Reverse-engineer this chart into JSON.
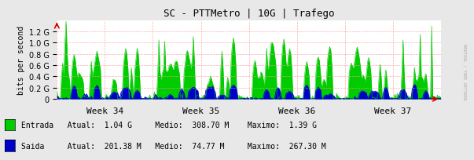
{
  "title": "SC - PTTMetro | 10G | Trafego",
  "ylabel": "bits per second",
  "bg_color": "#e8e8e8",
  "plot_bg_color": "#ffffff",
  "grid_color": "#ff9999",
  "entrada_color": "#00cc00",
  "saida_color": "#0000cc",
  "x_tick_labels": [
    "Week 34",
    "Week 35",
    "Week 36",
    "Week 37"
  ],
  "x_tick_positions": [
    0.125,
    0.375,
    0.625,
    0.875
  ],
  "ylim": [
    0,
    1400000000.0
  ],
  "yticks": [
    0,
    200000000.0,
    400000000.0,
    600000000.0,
    800000000.0,
    1000000000.0,
    1200000000.0
  ],
  "legend": [
    {
      "label": "Entrada",
      "color": "#00cc00",
      "atual": "1.04 G",
      "medio": "308.70 M",
      "maximo": "1.39 G"
    },
    {
      "label": "Saida",
      "color": "#0000cc",
      "atual": "201.38 M",
      "medio": "74.77 M",
      "maximo": "267.30 M"
    }
  ],
  "watermark": "RRDTOOL / TOBI OETIKER",
  "arrow_color": "#cc0000",
  "num_points": 336
}
